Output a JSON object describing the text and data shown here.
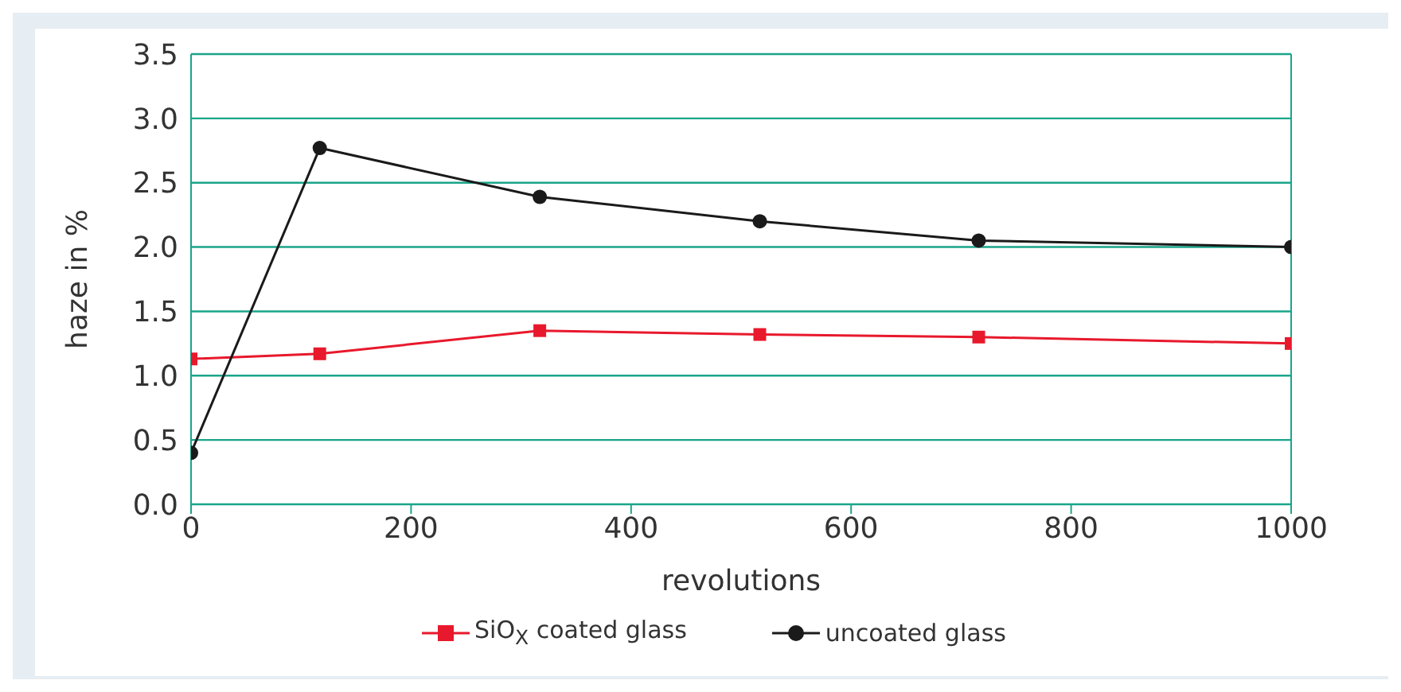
{
  "chart_data": {
    "type": "line",
    "xlabel": "revolutions",
    "ylabel": "haze in %",
    "xlim": [
      0,
      1000
    ],
    "xticks": [
      0,
      200,
      400,
      600,
      800,
      1000
    ],
    "ylim": [
      0,
      3.5
    ],
    "yticks": [
      {
        "value": 0,
        "label": "0.0"
      },
      0.5,
      {
        "value": 1,
        "label": "1.0"
      },
      1.5,
      {
        "value": 2,
        "label": "2.0"
      },
      2.5,
      {
        "value": 3,
        "label": "3.0"
      },
      3.5
    ],
    "grid": "y",
    "legend": "bottom",
    "line_style": "solid",
    "series": [
      {
        "name": "SiO$_{X}$ coated glass",
        "color": "#e8192c",
        "marker": "square",
        "x": [
          0,
          117,
          317,
          517,
          716,
          1000
        ],
        "values": [
          1.13,
          1.17,
          1.35,
          1.32,
          1.3,
          1.25
        ]
      },
      {
        "name": "uncoated glass",
        "color": "#1a1a1a",
        "marker": "circle",
        "x": [
          0,
          117,
          317,
          517,
          716,
          1000
        ],
        "values": [
          0.4,
          2.77,
          2.39,
          2.2,
          2.05,
          2.0
        ]
      }
    ]
  }
}
